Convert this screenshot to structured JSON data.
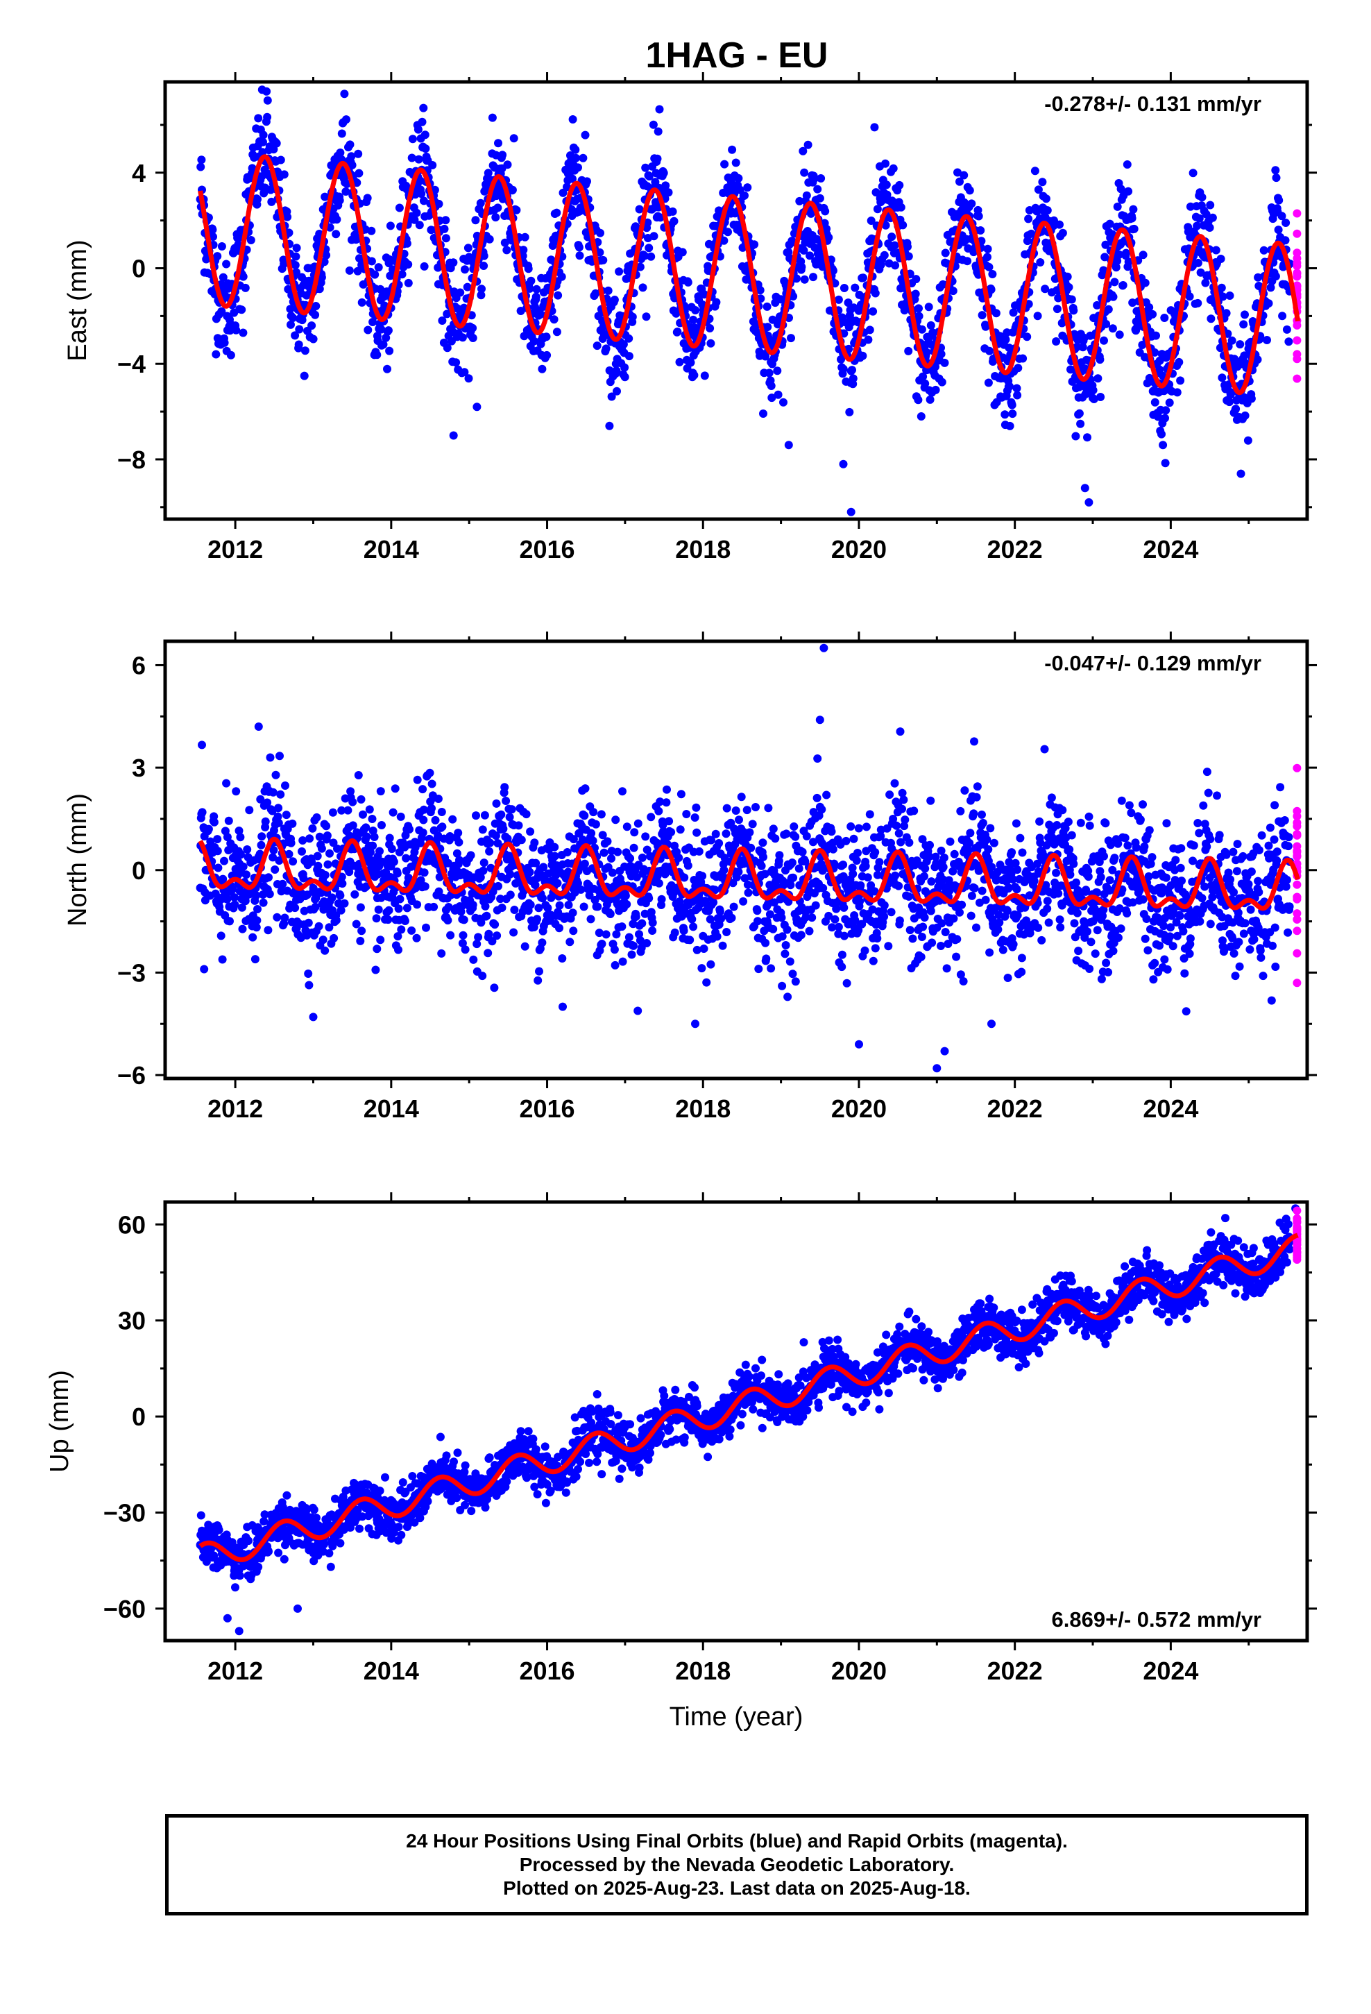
{
  "title": "1HAG - EU",
  "colors": {
    "final": "#0000ff",
    "rapid": "#ff00ff",
    "model": "#ff0000",
    "frame": "#000000"
  },
  "footer": {
    "line1": "24 Hour Positions Using Final Orbits (blue) and Rapid Orbits (magenta).",
    "line2": "Processed by the Nevada Geodetic Laboratory.",
    "line3": "Plotted on 2025-Aug-23. Last data on 2025-Aug-18."
  },
  "chart_data": [
    {
      "type": "scatter",
      "id": "east",
      "ylabel": "East (mm)",
      "xlabel": "",
      "rate_label": "-0.278+/- 0.131 mm/yr",
      "xlim": [
        2011.1,
        2025.75
      ],
      "ylim": [
        -10.5,
        7.8
      ],
      "xticks": [
        2012,
        2014,
        2016,
        2018,
        2020,
        2022,
        2024
      ],
      "yticks": [
        -8,
        -4,
        0,
        4
      ],
      "ytick_labels": [
        "−8",
        "−4",
        "0",
        "4"
      ],
      "data_start": 2011.55,
      "data_end": 2025.63,
      "rapid_start": 2025.53,
      "model": {
        "offset": 1.7,
        "rate": -0.278,
        "annual_amp_start": 3.2,
        "annual_amp_end": 3.2,
        "annual_phase_peak": 0.38,
        "semiannual_amp": 0.0,
        "semiannual_peak": 0.0
      },
      "scatter_sd": 1.15,
      "outliers": [
        [
          2012.1,
          -2.7
        ],
        [
          2012.0,
          -2.4
        ],
        [
          2014.8,
          -7.0
        ],
        [
          2015.1,
          -5.8
        ],
        [
          2016.8,
          -6.6
        ],
        [
          2019.1,
          -7.4
        ],
        [
          2019.9,
          -10.2
        ],
        [
          2019.8,
          -8.2
        ],
        [
          2022.9,
          -9.2
        ],
        [
          2022.95,
          -9.8
        ],
        [
          2024.9,
          -8.6
        ],
        [
          2023.9,
          -7.4
        ],
        [
          2020.8,
          -6.2
        ],
        [
          2012.4,
          7.4
        ],
        [
          2013.4,
          7.3
        ],
        [
          2020.2,
          5.9
        ],
        [
          2015.3,
          6.3
        ]
      ]
    },
    {
      "type": "scatter",
      "id": "north",
      "ylabel": "North (mm)",
      "xlabel": "",
      "rate_label": "-0.047+/- 0.129 mm/yr",
      "xlim": [
        2011.1,
        2025.75
      ],
      "ylim": [
        -6.1,
        6.7
      ],
      "xticks": [
        2012,
        2014,
        2016,
        2018,
        2020,
        2022,
        2024
      ],
      "yticks": [
        -6,
        -3,
        0,
        3,
        6
      ],
      "ytick_labels": [
        "−6",
        "−3",
        "0",
        "3",
        "6"
      ],
      "data_start": 2011.55,
      "data_end": 2025.63,
      "rapid_start": 2025.53,
      "model": {
        "offset": 0.0,
        "rate": -0.047,
        "annual_amp_start": 0.6,
        "annual_amp_end": 0.6,
        "annual_phase_peak": 0.5,
        "semiannual_amp": 0.35,
        "semiannual_peak": 0.0
      },
      "scatter_sd": 1.0,
      "outliers": [
        [
          2011.6,
          -2.9
        ],
        [
          2013.0,
          -4.3
        ],
        [
          2019.55,
          6.5
        ],
        [
          2020.0,
          -5.1
        ],
        [
          2021.0,
          -5.8
        ],
        [
          2021.1,
          -5.3
        ],
        [
          2017.9,
          -4.5
        ],
        [
          2021.7,
          -4.5
        ],
        [
          2016.2,
          -4.0
        ],
        [
          2019.5,
          4.4
        ],
        [
          2012.3,
          4.2
        ]
      ]
    },
    {
      "type": "scatter",
      "id": "up",
      "ylabel": "Up (mm)",
      "xlabel": "Time (year)",
      "rate_label": "6.869+/- 0.572 mm/yr",
      "xlim": [
        2011.1,
        2025.75
      ],
      "ylim": [
        -70,
        67
      ],
      "xticks": [
        2012,
        2014,
        2016,
        2018,
        2020,
        2022,
        2024
      ],
      "yticks": [
        -60,
        -30,
        0,
        30,
        60
      ],
      "ytick_labels": [
        "−60",
        "−30",
        "0",
        "30",
        "60"
      ],
      "data_start": 2011.55,
      "data_end": 2025.63,
      "rapid_start": 2025.53,
      "model": {
        "offset": -44.3,
        "rate": 6.869,
        "annual_amp_start": 4.2,
        "annual_amp_end": 4.2,
        "annual_phase_peak": 0.62,
        "semiannual_amp": 0.0,
        "semiannual_peak": 0.0
      },
      "scatter_sd": 3.8,
      "outliers": [
        [
          2012.05,
          -67
        ],
        [
          2011.9,
          -63
        ],
        [
          2012.8,
          -60
        ],
        [
          2016.7,
          -18
        ],
        [
          2024.7,
          62
        ],
        [
          2025.6,
          65
        ]
      ]
    }
  ]
}
